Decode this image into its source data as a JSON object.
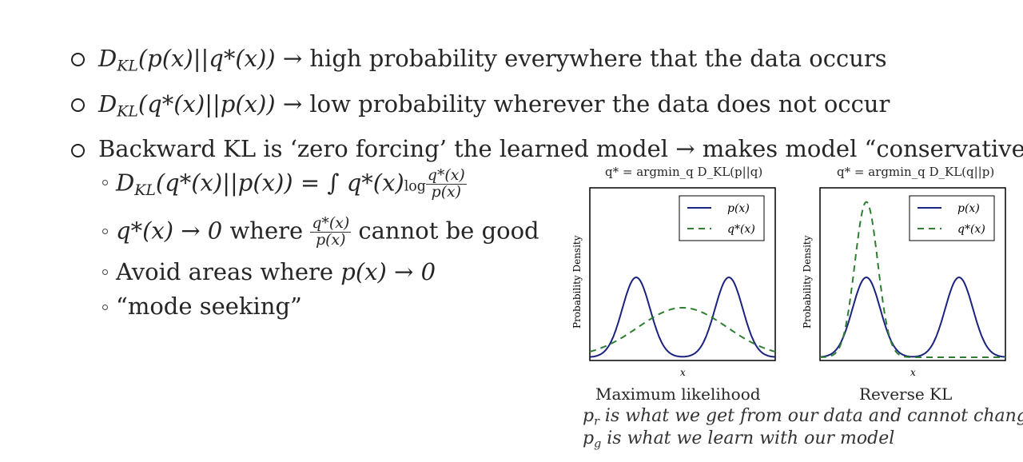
{
  "bullets": [
    {
      "math": "D",
      "sub": "KL",
      "expr": "(p(x)||q*(x))",
      "arrow": "→",
      "text": "high probability everywhere that the data occurs"
    },
    {
      "math": "D",
      "sub": "KL",
      "expr": "(q*(x)||p(x))",
      "arrow": "→",
      "text": "low probability wherever the data does not occur"
    },
    {
      "text": "Backward KL is ‘zero forcing’ the learned model → makes model “conservative”"
    }
  ],
  "subbullets": {
    "formula": {
      "lhs": "D",
      "sub": "KL",
      "args": "(q*(x)||p(x))",
      "eq": "= ∫ q*(x)",
      "log": "log",
      "num": "q*(x)",
      "den": "p(x)"
    },
    "zero": {
      "pre": "q*(x) → 0",
      "where": " where ",
      "num": "q*(x)",
      "den": "p(x)",
      "post": " cannot be good"
    },
    "avoid": {
      "text": "Avoid areas where ",
      "expr": "p(x) → 0"
    },
    "mode": {
      "text": "“mode seeking”"
    }
  },
  "plots": [
    {
      "title": "q* = argmin_q D_KL(p||q)",
      "caption": "Maximum likelihood",
      "ylabel": "Probability Density",
      "xlabel": "x",
      "legend": [
        "p(x)",
        "q*(x)"
      ]
    },
    {
      "title": "q* = argmin_q D_KL(q||p)",
      "caption": "Reverse KL",
      "ylabel": "Probability Density",
      "xlabel": "x",
      "legend": [
        "p(x)",
        "q*(x)"
      ]
    }
  ],
  "notes": [
    {
      "var": "p",
      "sub": "r",
      "text": " is what we get from our data and cannot change"
    },
    {
      "var": "p",
      "sub": "g",
      "text": " is what we learn with our model"
    }
  ],
  "chart_data": [
    {
      "type": "line",
      "title": "q* = argmin_q D_KL(p||q)",
      "xlabel": "x",
      "ylabel": "Probability Density",
      "series": [
        {
          "name": "p(x)",
          "curve": "bimodal",
          "x": [
            -5,
            -3,
            -2.5,
            -2,
            -1,
            0,
            1,
            2,
            2.5,
            3,
            5
          ],
          "values": [
            0.02,
            0.85,
            1.0,
            0.85,
            0.2,
            0.0,
            0.2,
            0.85,
            1.0,
            0.85,
            0.02
          ]
        },
        {
          "name": "q*(x)",
          "curve": "broad-unimodal",
          "x": [
            -5,
            -2.5,
            0,
            2.5,
            5
          ],
          "values": [
            0.05,
            0.4,
            0.6,
            0.4,
            0.05
          ]
        }
      ],
      "colors": {
        "p(x)": "#1a237e",
        "q*(x)": "#2e7d32"
      },
      "grid": false,
      "legend": "top-right"
    },
    {
      "type": "line",
      "title": "q* = argmin_q D_KL(q||p)",
      "xlabel": "x",
      "ylabel": "Probability Density",
      "series": [
        {
          "name": "p(x)",
          "curve": "bimodal",
          "x": [
            -5,
            -3,
            -2.5,
            -2,
            -1,
            0,
            1,
            2,
            2.5,
            3,
            5
          ],
          "values": [
            0.02,
            0.85,
            1.0,
            0.85,
            0.2,
            0.0,
            0.2,
            0.85,
            1.0,
            0.85,
            0.02
          ]
        },
        {
          "name": "q*(x)",
          "curve": "narrow-peak-left",
          "x": [
            -5,
            -3,
            -2.5,
            -2,
            -1,
            0,
            5
          ],
          "values": [
            0.0,
            1.2,
            1.8,
            1.2,
            0.1,
            0.0,
            0.0
          ]
        }
      ],
      "colors": {
        "p(x)": "#1a237e",
        "q*(x)": "#2e7d32"
      },
      "grid": false,
      "legend": "top-right"
    }
  ]
}
